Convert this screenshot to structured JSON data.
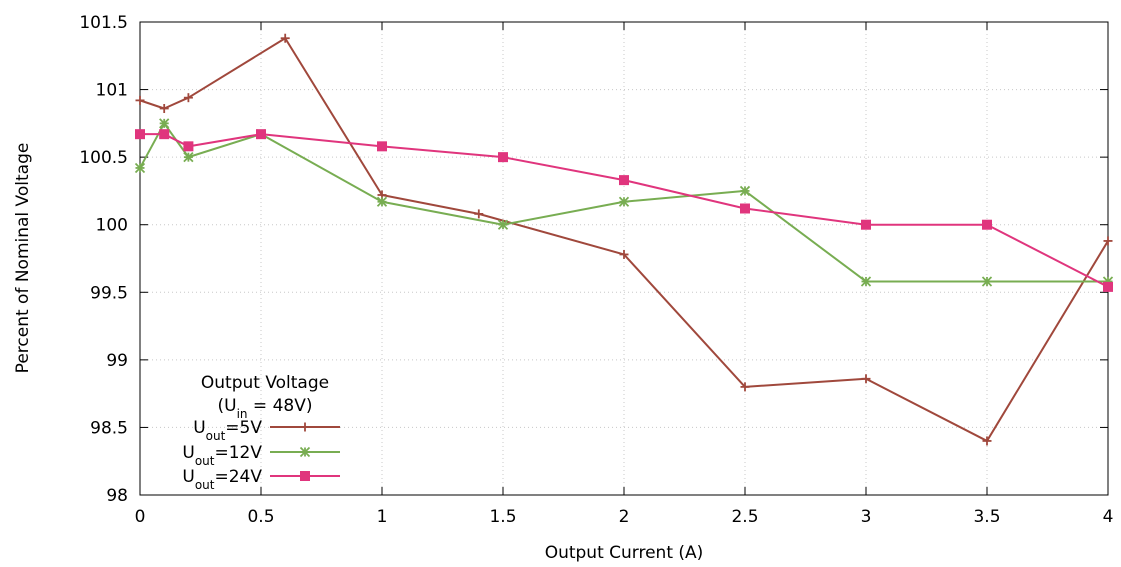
{
  "chart_data": {
    "type": "line",
    "xlabel": "Output Current (A)",
    "ylabel": "Percent of Nominal Voltage",
    "xlim": [
      0,
      4
    ],
    "ylim": [
      98,
      101.5
    ],
    "x_ticks": [
      "0",
      "0.5",
      "1",
      "1.5",
      "2",
      "2.5",
      "3",
      "3.5",
      "4"
    ],
    "y_ticks": [
      "98",
      "98.5",
      "99",
      "99.5",
      "100",
      "100.5",
      "101",
      "101.5"
    ],
    "grid": true,
    "legend": {
      "placement": "bottom-left",
      "title_line1": "Output Voltage",
      "title_line2_prefix": "(U",
      "title_line2_sub": "in",
      "title_line2_suffix": " = 48V)"
    },
    "series": [
      {
        "name": "Uout=5V",
        "label_main": "U",
        "label_sub": "out",
        "label_rest": "=5V",
        "color": "#a0483c",
        "marker": "plus",
        "x": [
          0,
          0.1,
          0.2,
          0.6,
          1.0,
          1.4,
          2.0,
          2.5,
          3.0,
          3.5,
          4.0
        ],
        "y": [
          100.92,
          100.86,
          100.94,
          101.38,
          100.22,
          100.08,
          99.78,
          98.8,
          98.86,
          98.4,
          99.88
        ]
      },
      {
        "name": "Uout=12V",
        "label_main": "U",
        "label_sub": "out",
        "label_rest": "=12V",
        "color": "#78ad52",
        "marker": "star",
        "x": [
          0,
          0.1,
          0.2,
          0.5,
          1.0,
          1.5,
          2.0,
          2.5,
          3.0,
          3.5,
          4.0
        ],
        "y": [
          100.42,
          100.75,
          100.5,
          100.67,
          100.17,
          100.0,
          100.17,
          100.25,
          99.58,
          99.58,
          99.58
        ]
      },
      {
        "name": "Uout=24V",
        "label_main": "U",
        "label_sub": "out",
        "label_rest": "=24V",
        "color": "#e0357d",
        "marker": "square",
        "x": [
          0,
          0.1,
          0.2,
          0.5,
          1.0,
          1.5,
          2.0,
          2.5,
          3.0,
          3.5,
          4.0
        ],
        "y": [
          100.67,
          100.67,
          100.58,
          100.67,
          100.58,
          100.5,
          100.33,
          100.12,
          100.0,
          100.0,
          99.54
        ]
      }
    ]
  }
}
